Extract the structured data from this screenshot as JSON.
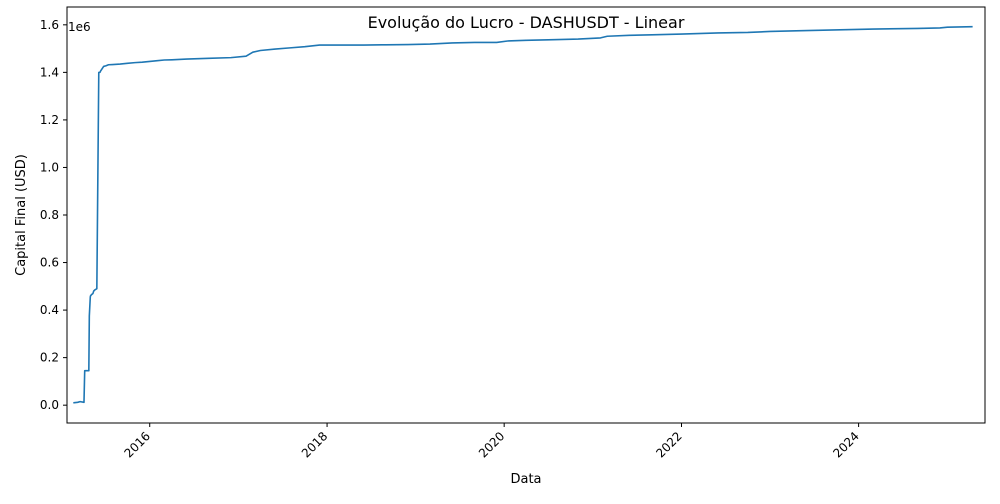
{
  "chart_data": {
    "type": "line",
    "title": "Evolução do Lucro - DASHUSDT - Linear",
    "xlabel": "Data",
    "ylabel": "Capital Final (USD)",
    "y_offset_label": "1e6",
    "x_tick_labels": [
      "2016",
      "2018",
      "2020",
      "2022",
      "2024"
    ],
    "x_tick_values": [
      "2016-01-01",
      "2018-01-01",
      "2020-01-01",
      "2022-01-01",
      "2024-01-01"
    ],
    "y_tick_labels": [
      "0.0",
      "0.2",
      "0.4",
      "0.6",
      "0.8",
      "1.0",
      "1.2",
      "1.4",
      "1.6"
    ],
    "y_tick_values": [
      0,
      200000,
      400000,
      600000,
      800000,
      1000000,
      1200000,
      1400000,
      1600000
    ],
    "xlim": [
      "2015-01-25",
      "2025-06-05"
    ],
    "ylim": [
      -75000,
      1675000
    ],
    "grid": false,
    "legend": "none",
    "colors": {
      "line": "#1f77b4"
    },
    "series": [
      {
        "x": [
          "2015-02-20",
          "2015-03-10",
          "2015-03-20",
          "2015-04-05",
          "2015-04-08",
          "2015-04-25",
          "2015-04-27",
          "2015-05-01",
          "2015-05-02",
          "2015-05-06",
          "2015-05-12",
          "2015-05-15",
          "2015-05-20",
          "2015-05-28",
          "2015-06-05",
          "2015-06-10",
          "2015-06-12",
          "2015-06-25",
          "2015-07-05",
          "2015-07-10",
          "2015-07-15",
          "2015-08-01",
          "2015-09-01",
          "2015-10-01",
          "2015-11-01",
          "2015-12-01",
          "2016-01-01",
          "2016-02-01",
          "2016-03-01",
          "2016-04-01",
          "2016-06-01",
          "2016-09-01",
          "2016-12-01",
          "2017-02-01",
          "2017-03-01",
          "2017-04-01",
          "2017-06-01",
          "2017-08-01",
          "2017-10-01",
          "2017-12-01",
          "2018-03-01",
          "2018-06-01",
          "2018-09-01",
          "2018-12-01",
          "2019-03-01",
          "2019-06-01",
          "2019-09-01",
          "2019-12-01",
          "2020-01-15",
          "2020-04-01",
          "2020-07-01",
          "2020-11-01",
          "2021-02-01",
          "2021-03-01",
          "2021-06-01",
          "2021-09-01",
          "2022-01-01",
          "2022-06-01",
          "2022-10-01",
          "2023-01-01",
          "2023-06-01",
          "2023-12-01",
          "2024-03-01",
          "2024-09-01",
          "2024-12-01",
          "2025-01-01",
          "2025-04-15"
        ],
        "y": [
          10000,
          12000,
          15000,
          12000,
          145000,
          145000,
          375000,
          455000,
          460000,
          465000,
          470000,
          480000,
          485000,
          490000,
          1400000,
          1400000,
          1405000,
          1425000,
          1428000,
          1430000,
          1432000,
          1433000,
          1435000,
          1438000,
          1441000,
          1443000,
          1446000,
          1449000,
          1452000,
          1453000,
          1456000,
          1459000,
          1462000,
          1468000,
          1485000,
          1492000,
          1498000,
          1503000,
          1508000,
          1515000,
          1515000,
          1515000,
          1516000,
          1517000,
          1519000,
          1524000,
          1526000,
          1526000,
          1532000,
          1535000,
          1537000,
          1540000,
          1545000,
          1552000,
          1556000,
          1558000,
          1561000,
          1566000,
          1568000,
          1572000,
          1576000,
          1580000,
          1582000,
          1585000,
          1587000,
          1590000,
          1592000
        ]
      }
    ]
  }
}
